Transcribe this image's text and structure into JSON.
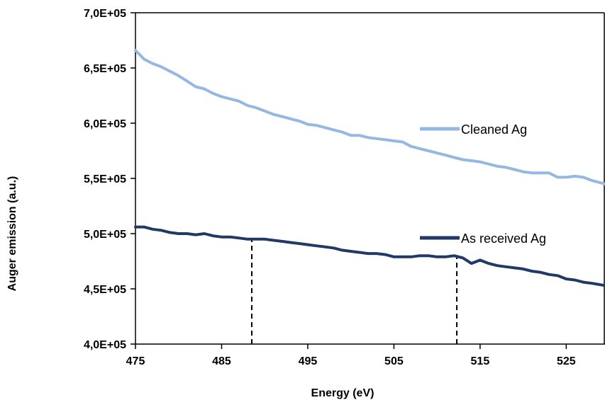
{
  "chart_data": {
    "type": "line",
    "title": "",
    "xlabel": "Energy (eV)",
    "ylabel": "Auger emission (a.u.)",
    "xlim": [
      475,
      529.5
    ],
    "ylim": [
      400000,
      700000
    ],
    "x_ticks": [
      475,
      485,
      495,
      505,
      515,
      525
    ],
    "x_tick_labels": [
      "475",
      "485",
      "495",
      "505",
      "515",
      "525"
    ],
    "y_ticks": [
      400000,
      450000,
      500000,
      550000,
      600000,
      650000,
      700000
    ],
    "y_tick_labels": [
      "4,0E+05",
      "4,5E+05",
      "5,0E+05",
      "5,5E+05",
      "6,0E+05",
      "6,5E+05",
      "7,0E+05"
    ],
    "grid": false,
    "legend": "inline labels at right",
    "series": [
      {
        "name": "Cleaned Ag",
        "color": "#95b8e3",
        "x": [
          475,
          476,
          477,
          478,
          479,
          480,
          481,
          482,
          483,
          484,
          485,
          486,
          487,
          488,
          489,
          490,
          491,
          492,
          493,
          494,
          495,
          496,
          497,
          498,
          499,
          500,
          501,
          502,
          503,
          504,
          505,
          506,
          507,
          508,
          509,
          510,
          511,
          512,
          513,
          514,
          515,
          516,
          517,
          518,
          519,
          520,
          521,
          522,
          523,
          524,
          525,
          526,
          527,
          528,
          529.5
        ],
        "y": [
          666000,
          658000,
          654000,
          651000,
          647000,
          643000,
          638000,
          633000,
          631000,
          627000,
          624000,
          622000,
          620000,
          616000,
          614000,
          611000,
          608000,
          606000,
          604000,
          602000,
          599000,
          598000,
          596000,
          594000,
          592000,
          589000,
          589000,
          587000,
          586000,
          585000,
          584000,
          583000,
          579000,
          577000,
          575000,
          573000,
          571000,
          569000,
          567000,
          566000,
          565000,
          563000,
          561000,
          560000,
          558000,
          556000,
          555000,
          555000,
          555000,
          551000,
          551000,
          552000,
          551000,
          548000,
          545000
        ]
      },
      {
        "name": "As received Ag",
        "color": "#1f3a66",
        "x": [
          475,
          476,
          477,
          478,
          479,
          480,
          481,
          482,
          483,
          484,
          485,
          486,
          487,
          488,
          489,
          490,
          491,
          492,
          493,
          494,
          495,
          496,
          497,
          498,
          499,
          500,
          501,
          502,
          503,
          504,
          505,
          506,
          507,
          508,
          509,
          510,
          511,
          512,
          513,
          514,
          515,
          516,
          517,
          518,
          519,
          520,
          521,
          522,
          523,
          524,
          525,
          526,
          527,
          528,
          529.5
        ],
        "y": [
          506000,
          506000,
          504000,
          503000,
          501000,
          500000,
          500000,
          499000,
          500000,
          498000,
          497000,
          497000,
          496000,
          495000,
          495000,
          495000,
          494000,
          493000,
          492000,
          491000,
          490000,
          489000,
          488000,
          487000,
          485000,
          484000,
          483000,
          482000,
          482000,
          481000,
          479000,
          479000,
          479000,
          480000,
          480000,
          479000,
          479000,
          480000,
          478000,
          473000,
          476000,
          473000,
          471000,
          470000,
          469000,
          468000,
          466000,
          465000,
          463000,
          462000,
          459000,
          458000,
          456000,
          455000,
          453000
        ]
      }
    ],
    "annotations": [
      {
        "type": "vertical-dashed-line",
        "x": 488.5
      },
      {
        "type": "vertical-dashed-line",
        "x": 512.3
      }
    ]
  }
}
